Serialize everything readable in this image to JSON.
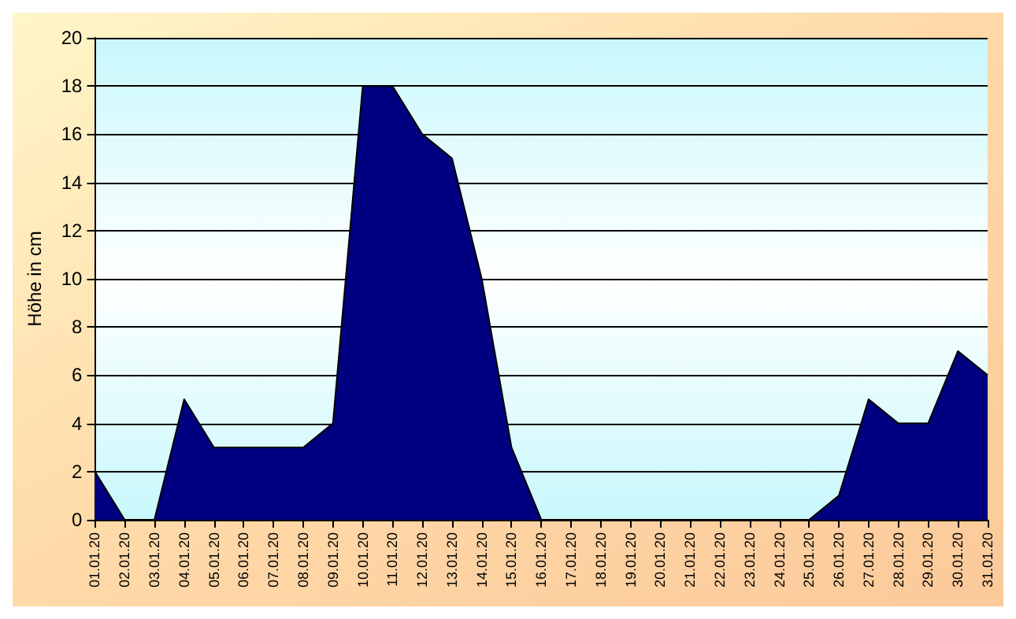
{
  "chart_data": {
    "type": "area",
    "ylabel": "Höhe in cm",
    "categories": [
      "01.01.20",
      "02.01.20",
      "03.01.20",
      "04.01.20",
      "05.01.20",
      "06.01.20",
      "07.01.20",
      "08.01.20",
      "09.01.20",
      "10.01.20",
      "11.01.20",
      "12.01.20",
      "13.01.20",
      "14.01.20",
      "15.01.20",
      "16.01.20",
      "17.01.20",
      "18.01.20",
      "19.01.20",
      "20.01.20",
      "21.01.20",
      "22.01.20",
      "23.01.20",
      "24.01.20",
      "25.01.20",
      "26.01.20",
      "27.01.20",
      "28.01.20",
      "29.01.20",
      "30.01.20",
      "31.01.20"
    ],
    "values": [
      2,
      0,
      0,
      5,
      3,
      3,
      3,
      3,
      4,
      18,
      18,
      16,
      15,
      10,
      3,
      0,
      0,
      0,
      0,
      0,
      0,
      0,
      0,
      0,
      0,
      1,
      5,
      4,
      4,
      7,
      6
    ],
    "color": "#000080",
    "ylim": [
      0,
      20
    ],
    "yticks": [
      0,
      2,
      4,
      6,
      8,
      10,
      12,
      14,
      16,
      18,
      20
    ],
    "grid": "y"
  }
}
